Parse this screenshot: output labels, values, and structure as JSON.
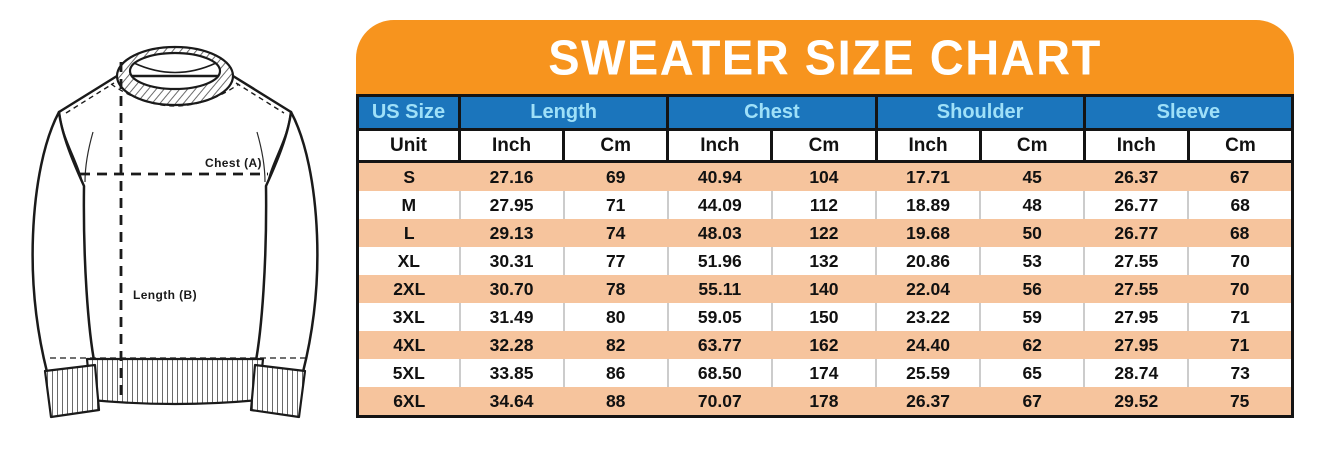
{
  "title": "SWEATER SIZE CHART",
  "diagram": {
    "chest_label": "Chest (A)",
    "length_label": "Length (B)"
  },
  "table": {
    "group_headers": [
      {
        "label": "US Size",
        "span": 1
      },
      {
        "label": "Length",
        "span": 2
      },
      {
        "label": "Chest",
        "span": 2
      },
      {
        "label": "Shoulder",
        "span": 2
      },
      {
        "label": "Sleeve",
        "span": 2
      }
    ],
    "unit_row": [
      "Unit",
      "Inch",
      "Cm",
      "Inch",
      "Cm",
      "Inch",
      "Cm",
      "Inch",
      "Cm"
    ],
    "rows": [
      [
        "S",
        "27.16",
        "69",
        "40.94",
        "104",
        "17.71",
        "45",
        "26.37",
        "67"
      ],
      [
        "M",
        "27.95",
        "71",
        "44.09",
        "112",
        "18.89",
        "48",
        "26.77",
        "68"
      ],
      [
        "L",
        "29.13",
        "74",
        "48.03",
        "122",
        "19.68",
        "50",
        "26.77",
        "68"
      ],
      [
        "XL",
        "30.31",
        "77",
        "51.96",
        "132",
        "20.86",
        "53",
        "27.55",
        "70"
      ],
      [
        "2XL",
        "30.70",
        "78",
        "55.11",
        "140",
        "22.04",
        "56",
        "27.55",
        "70"
      ],
      [
        "3XL",
        "31.49",
        "80",
        "59.05",
        "150",
        "23.22",
        "59",
        "27.95",
        "71"
      ],
      [
        "4XL",
        "32.28",
        "82",
        "63.77",
        "162",
        "24.40",
        "62",
        "27.95",
        "71"
      ],
      [
        "5XL",
        "33.85",
        "86",
        "68.50",
        "174",
        "25.59",
        "65",
        "28.74",
        "73"
      ],
      [
        "6XL",
        "34.64",
        "88",
        "70.07",
        "178",
        "26.37",
        "67",
        "29.52",
        "75"
      ]
    ]
  },
  "chart_data": {
    "type": "table",
    "title": "SWEATER SIZE CHART",
    "columns": [
      "US Size",
      "Length Inch",
      "Length Cm",
      "Chest Inch",
      "Chest Cm",
      "Shoulder Inch",
      "Shoulder Cm",
      "Sleeve Inch",
      "Sleeve Cm"
    ],
    "rows": [
      [
        "S",
        27.16,
        69,
        40.94,
        104,
        17.71,
        45,
        26.37,
        67
      ],
      [
        "M",
        27.95,
        71,
        44.09,
        112,
        18.89,
        48,
        26.77,
        68
      ],
      [
        "L",
        29.13,
        74,
        48.03,
        122,
        19.68,
        50,
        26.77,
        68
      ],
      [
        "XL",
        30.31,
        77,
        51.96,
        132,
        20.86,
        53,
        27.55,
        70
      ],
      [
        "2XL",
        30.7,
        78,
        55.11,
        140,
        22.04,
        56,
        27.55,
        70
      ],
      [
        "3XL",
        31.49,
        80,
        59.05,
        150,
        23.22,
        59,
        27.95,
        71
      ],
      [
        "4XL",
        32.28,
        82,
        63.77,
        162,
        24.4,
        62,
        27.95,
        71
      ],
      [
        "5XL",
        33.85,
        86,
        68.5,
        174,
        25.59,
        65,
        28.74,
        73
      ],
      [
        "6XL",
        34.64,
        88,
        70.07,
        178,
        26.37,
        67,
        29.52,
        75
      ]
    ],
    "legend": "none",
    "annotations": [
      "Chest (A)",
      "Length (B)"
    ]
  },
  "colors": {
    "banner_orange": "#F7941E",
    "header_blue": "#1B75BC",
    "header_blue_text": "#9FE0F8",
    "row_peach": "#F6C49D",
    "row_white": "#FFFFFF",
    "border_black": "#141414",
    "separator_gray": "#CCCCCC"
  }
}
